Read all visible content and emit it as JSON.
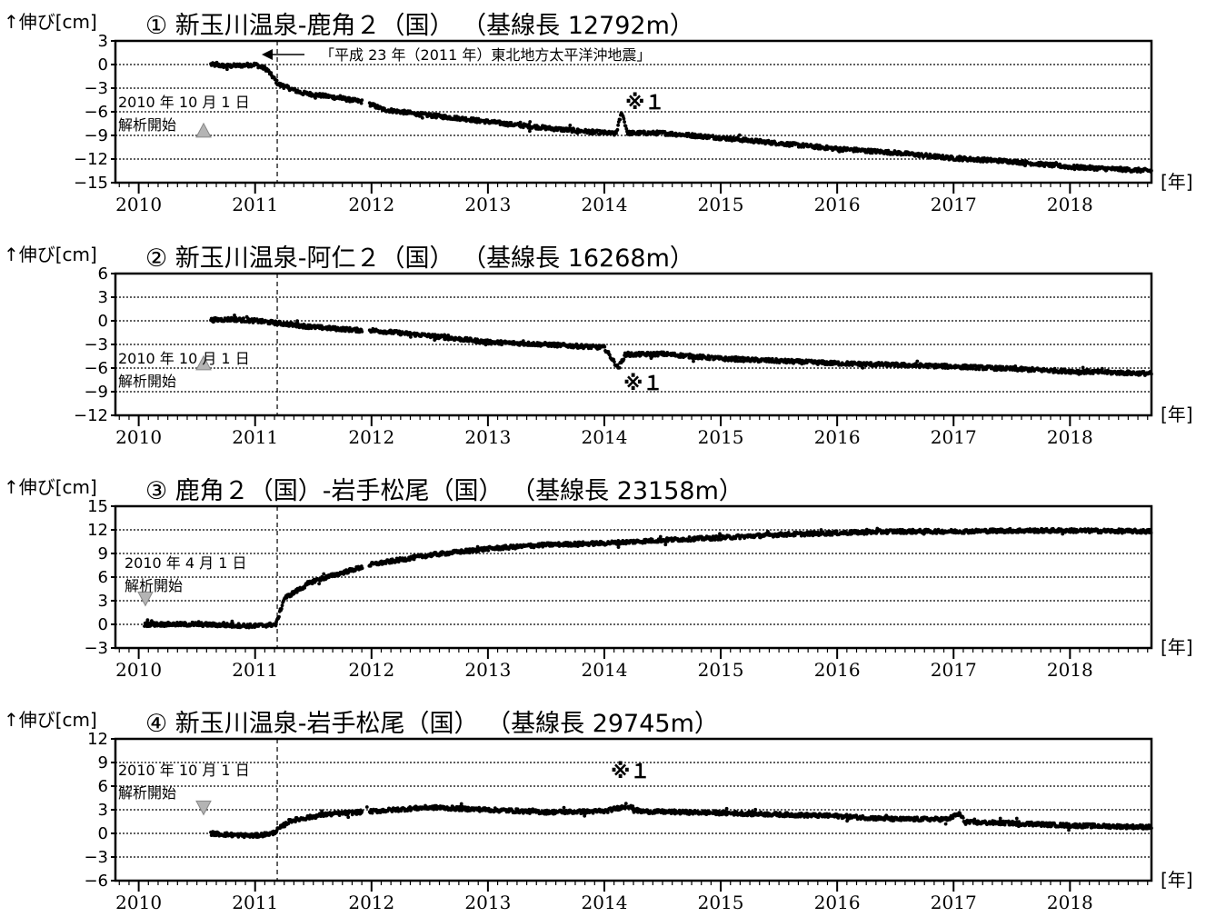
{
  "xlabel": "[年]",
  "ylabel": "↑伸び[cm]",
  "x_ticks": [
    "2010",
    "2011",
    "2012",
    "2013",
    "2014",
    "2015",
    "2016",
    "2017",
    "2018"
  ],
  "event_note": "「平成 23 年（2011 年）東北地方太平洋沖地震」",
  "colors": {
    "points": "#000000",
    "marker": "#b4b4b4",
    "grid": "#000000"
  },
  "chart_data": [
    {
      "type": "scatter",
      "title": "① 新玉川温泉-鹿角２（国） （基線長 12792m）",
      "ylim": [
        -15,
        3
      ],
      "yticks": [
        3,
        0,
        -3,
        -6,
        -9,
        -12,
        -15
      ],
      "grid": true,
      "start_note": [
        "2010 年 10 月 1 日",
        "解析開始"
      ],
      "start_marker": "up-triangle",
      "special_mark": "※１",
      "points": [
        [
          2010.62,
          0.0
        ],
        [
          2010.75,
          -0.2
        ],
        [
          2010.9,
          -0.1
        ],
        [
          2011.0,
          0.0
        ],
        [
          2011.1,
          -0.6
        ],
        [
          2011.2,
          -2.5
        ],
        [
          2011.4,
          -3.6
        ],
        [
          2011.7,
          -4.2
        ],
        [
          2011.95,
          -4.8
        ],
        [
          2012.1,
          -5.7
        ],
        [
          2012.4,
          -6.3
        ],
        [
          2012.8,
          -6.9
        ],
        [
          2013.2,
          -7.6
        ],
        [
          2013.6,
          -8.2
        ],
        [
          2014.1,
          -8.8
        ],
        [
          2014.15,
          -6.0
        ],
        [
          2014.2,
          -8.7
        ],
        [
          2014.5,
          -8.7
        ],
        [
          2015.0,
          -9.3
        ],
        [
          2015.5,
          -10.0
        ],
        [
          2016.0,
          -10.7
        ],
        [
          2016.5,
          -11.2
        ],
        [
          2017.0,
          -11.9
        ],
        [
          2017.5,
          -12.3
        ],
        [
          2018.0,
          -13.0
        ],
        [
          2018.7,
          -13.5
        ]
      ]
    },
    {
      "type": "scatter",
      "title": "② 新玉川温泉-阿仁２（国） （基線長 16268m）",
      "ylim": [
        -12,
        6
      ],
      "yticks": [
        6,
        3,
        0,
        -3,
        -6,
        -9,
        -12
      ],
      "grid": true,
      "start_note": [
        "2010 年 10 月 1 日",
        "解析開始"
      ],
      "start_marker": "up-triangle",
      "special_mark": "※１",
      "points": [
        [
          2010.62,
          0.1
        ],
        [
          2010.8,
          0.2
        ],
        [
          2011.0,
          0.0
        ],
        [
          2011.2,
          -0.3
        ],
        [
          2011.5,
          -0.8
        ],
        [
          2011.9,
          -1.2
        ],
        [
          2012.0,
          -1.2
        ],
        [
          2012.5,
          -1.9
        ],
        [
          2013.0,
          -2.7
        ],
        [
          2013.5,
          -3.0
        ],
        [
          2014.0,
          -3.4
        ],
        [
          2014.12,
          -6.0
        ],
        [
          2014.18,
          -4.3
        ],
        [
          2014.5,
          -4.2
        ],
        [
          2015.0,
          -4.8
        ],
        [
          2015.5,
          -5.1
        ],
        [
          2016.0,
          -5.4
        ],
        [
          2016.5,
          -5.6
        ],
        [
          2017.0,
          -5.8
        ],
        [
          2017.5,
          -6.1
        ],
        [
          2018.0,
          -6.4
        ],
        [
          2018.7,
          -6.7
        ]
      ]
    },
    {
      "type": "scatter",
      "title": "③ 鹿角２（国）-岩手松尾（国） （基線長 23158m）",
      "ylim": [
        -3,
        15
      ],
      "yticks": [
        15,
        12,
        9,
        6,
        3,
        0,
        -3
      ],
      "grid": true,
      "start_note": [
        "2010 年 4 月 1 日",
        "解析開始"
      ],
      "start_marker": "down-triangle",
      "special_mark": "",
      "points": [
        [
          2010.05,
          0.0
        ],
        [
          2010.5,
          0.0
        ],
        [
          2011.0,
          -0.2
        ],
        [
          2011.18,
          0.0
        ],
        [
          2011.25,
          3.3
        ],
        [
          2011.5,
          5.5
        ],
        [
          2012.0,
          7.6
        ],
        [
          2012.5,
          8.8
        ],
        [
          2013.0,
          9.6
        ],
        [
          2013.5,
          10.1
        ],
        [
          2014.0,
          10.3
        ],
        [
          2014.5,
          10.7
        ],
        [
          2015.0,
          11.0
        ],
        [
          2015.5,
          11.4
        ],
        [
          2016.0,
          11.6
        ],
        [
          2016.5,
          11.8
        ],
        [
          2017.0,
          11.8
        ],
        [
          2017.5,
          11.9
        ],
        [
          2018.0,
          11.9
        ],
        [
          2018.7,
          11.8
        ]
      ]
    },
    {
      "type": "scatter",
      "title": "④ 新玉川温泉-岩手松尾（国） （基線長 29745m）",
      "ylim": [
        -6,
        12
      ],
      "yticks": [
        12,
        9,
        6,
        3,
        0,
        -3,
        -6
      ],
      "grid": true,
      "start_note": [
        "2010 年 10 月 1 日",
        "解析開始"
      ],
      "start_marker": "down-triangle",
      "special_mark": "※１",
      "points": [
        [
          2010.62,
          0.0
        ],
        [
          2010.8,
          -0.2
        ],
        [
          2011.0,
          -0.3
        ],
        [
          2011.15,
          0.0
        ],
        [
          2011.3,
          1.6
        ],
        [
          2011.6,
          2.4
        ],
        [
          2011.9,
          2.7
        ],
        [
          2012.0,
          2.8
        ],
        [
          2012.5,
          3.3
        ],
        [
          2013.0,
          3.0
        ],
        [
          2013.5,
          2.7
        ],
        [
          2014.0,
          2.8
        ],
        [
          2014.2,
          3.5
        ],
        [
          2014.3,
          2.8
        ],
        [
          2015.0,
          2.6
        ],
        [
          2015.5,
          2.4
        ],
        [
          2016.0,
          2.2
        ],
        [
          2016.5,
          1.8
        ],
        [
          2016.95,
          1.8
        ],
        [
          2017.05,
          2.5
        ],
        [
          2017.1,
          1.4
        ],
        [
          2017.5,
          1.3
        ],
        [
          2018.0,
          1.0
        ],
        [
          2018.7,
          0.8
        ]
      ]
    }
  ]
}
